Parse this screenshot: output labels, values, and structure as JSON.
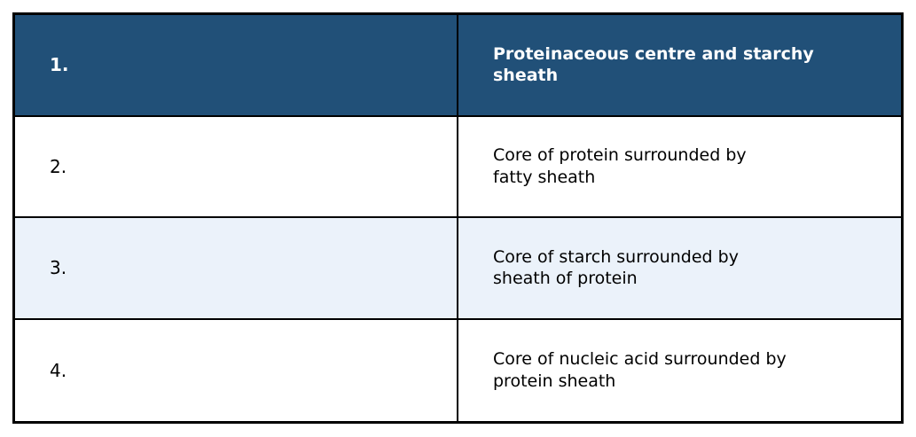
{
  "theme": {
    "header-bg": "#215078",
    "header-text": "#ffffff",
    "alt-row-bg": "#EBF2FA",
    "row-bg": "#ffffff",
    "border-color": "#000000",
    "body-text": "#000000"
  },
  "table": {
    "columns": [
      "number",
      "description"
    ],
    "rows": [
      {
        "number": "1.",
        "description": "Proteinaceous centre and starchy\nsheath",
        "style": "header"
      },
      {
        "number": "2.",
        "description": "Core of protein surrounded by\nfatty sheath",
        "style": "normal"
      },
      {
        "number": "3.",
        "description": "Core of starch surrounded by\nsheath of protein",
        "style": "alternate"
      },
      {
        "number": "4.",
        "description": "Core of nucleic acid surrounded by\nprotein sheath",
        "style": "normal"
      }
    ]
  }
}
